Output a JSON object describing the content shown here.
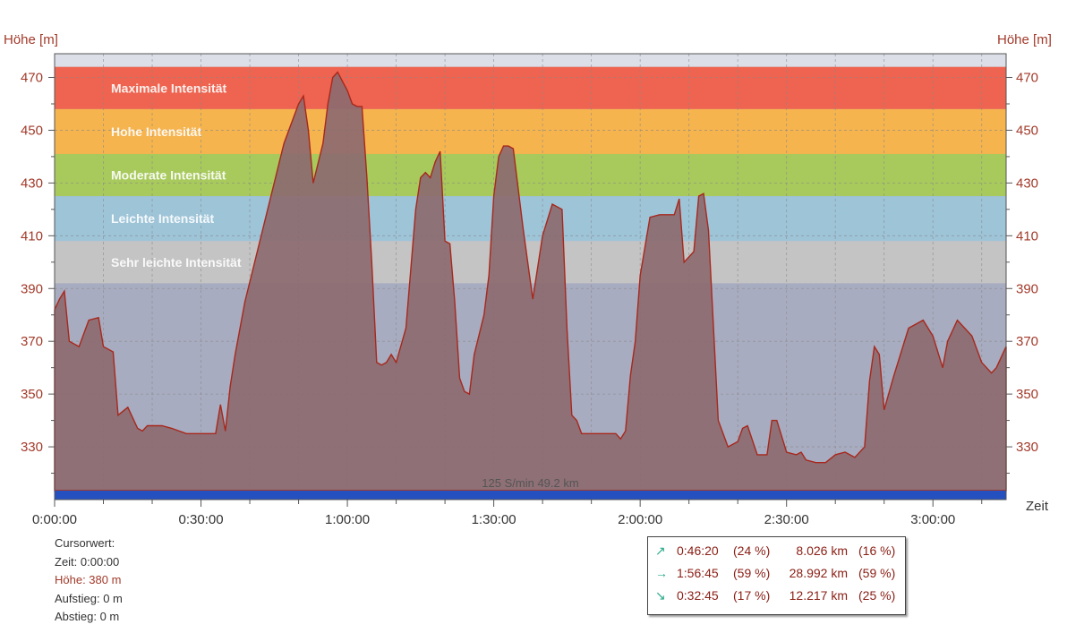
{
  "chart_data": {
    "type": "area",
    "ylabel": "Höhe [m]",
    "ylabel_right": "Höhe [m]",
    "xlabel": "Zeit",
    "x_unit": "h:mm:ss",
    "ylim": [
      310,
      479
    ],
    "xlim_seconds": [
      0,
      11700
    ],
    "y_ticks": [
      330,
      350,
      370,
      390,
      410,
      430,
      450,
      470
    ],
    "x_ticks": [
      "0:00:00",
      "0:30:00",
      "1:00:00",
      "1:30:00",
      "2:00:00",
      "2:30:00",
      "3:00:00"
    ],
    "zones": [
      {
        "name": "Maximale Intensität",
        "y_from": 458,
        "y_to": 474,
        "color": "#ee6450"
      },
      {
        "name": "Hohe Intensität",
        "y_from": 441,
        "y_to": 458,
        "color": "#f6b44e"
      },
      {
        "name": "Moderate Intensität",
        "y_from": 425,
        "y_to": 441,
        "color": "#a8ca5c"
      },
      {
        "name": "Leichte Intensität",
        "y_from": 408,
        "y_to": 425,
        "color": "#9ec4d8"
      },
      {
        "name": "Sehr leichte Intensität",
        "y_from": 392,
        "y_to": 408,
        "color": "#c4c4c4"
      }
    ],
    "bottom_label": "125 S/min 49.2 km",
    "series": [
      {
        "x_minutes": [
          0,
          1,
          2,
          3,
          5,
          7,
          9,
          10,
          12,
          13,
          15,
          17,
          18,
          19,
          20,
          21,
          22,
          24,
          27,
          30,
          33,
          34,
          35,
          36,
          37,
          39,
          41,
          43,
          45,
          47,
          49,
          50,
          51,
          52,
          53,
          55,
          56,
          57,
          58,
          60,
          61,
          62,
          63,
          64,
          65,
          66,
          67,
          68,
          69,
          70,
          72,
          74,
          75,
          76,
          77,
          78,
          79,
          80,
          81,
          82,
          83,
          84,
          85,
          86,
          88,
          89,
          90,
          91,
          92,
          93,
          94,
          96,
          98,
          100,
          102,
          104,
          105,
          106,
          107,
          108,
          109,
          110,
          111,
          113,
          115,
          116,
          117,
          118,
          119,
          120,
          122,
          124,
          125,
          126,
          127,
          128,
          129,
          130,
          131,
          132,
          133,
          134,
          136,
          138,
          140,
          141,
          142,
          144,
          145,
          146,
          147,
          148,
          150,
          152,
          153,
          154,
          156,
          158,
          160,
          162,
          164,
          166,
          167,
          168,
          169,
          170,
          172,
          175,
          178,
          180,
          181,
          182,
          183,
          185,
          188,
          190,
          192,
          193,
          194,
          195
        ],
        "y": [
          382,
          386,
          389,
          370,
          368,
          378,
          379,
          368,
          366,
          342,
          345,
          337,
          336,
          338,
          338,
          338,
          338,
          337,
          335,
          335,
          335,
          346,
          336,
          353,
          365,
          385,
          400,
          415,
          430,
          445,
          455,
          460,
          463,
          450,
          430,
          445,
          460,
          470,
          472,
          465,
          460,
          459,
          459,
          432,
          400,
          362,
          361,
          362,
          365,
          362,
          375,
          420,
          432,
          434,
          432,
          438,
          442,
          408,
          407,
          385,
          356,
          351,
          350,
          365,
          380,
          395,
          425,
          440,
          444,
          444,
          443,
          413,
          386,
          410,
          422,
          420,
          375,
          342,
          340,
          335,
          335,
          335,
          335,
          335,
          335,
          333,
          336,
          357,
          370,
          395,
          417,
          418,
          418,
          418,
          418,
          424,
          400,
          402,
          404,
          425,
          426,
          412,
          340,
          330,
          332,
          337,
          338,
          327,
          327,
          327,
          340,
          340,
          328,
          327,
          328,
          325,
          324,
          324,
          327,
          328,
          326,
          330,
          355,
          368,
          365,
          344,
          357,
          375,
          378,
          372,
          366,
          360,
          370,
          378,
          372,
          362,
          358,
          360,
          364,
          368
        ]
      }
    ]
  },
  "cursor": {
    "title": "Cursorwert:",
    "time": "Zeit: 0:00:00",
    "height": "Höhe:  380 m",
    "ascent": "Aufstieg: 0 m",
    "descent": "Abstieg: 0 m"
  },
  "stats": [
    {
      "icon": "up-arrow-icon",
      "glyph": "↗",
      "time": "0:46:20",
      "pct": "(24 %)",
      "dist": "8.026 km",
      "dist_pct": "(16 %)"
    },
    {
      "icon": "right-arrow-icon",
      "glyph": "→",
      "time": "1:56:45",
      "pct": "(59 %)",
      "dist": "28.992 km",
      "dist_pct": "(59 %)"
    },
    {
      "icon": "down-arrow-icon",
      "glyph": "↘",
      "time": "0:32:45",
      "pct": "(17 %)",
      "dist": "12.217 km",
      "dist_pct": "(25 %)"
    }
  ],
  "colors": {
    "area_fill": "#8c6a70",
    "area_stroke": "#a8281c",
    "plot_bg": "#a8acc0",
    "plot_top_bg": "#dcdfe8",
    "bottom_bar": "#2450c0",
    "axis_text": "#a23a2a"
  }
}
